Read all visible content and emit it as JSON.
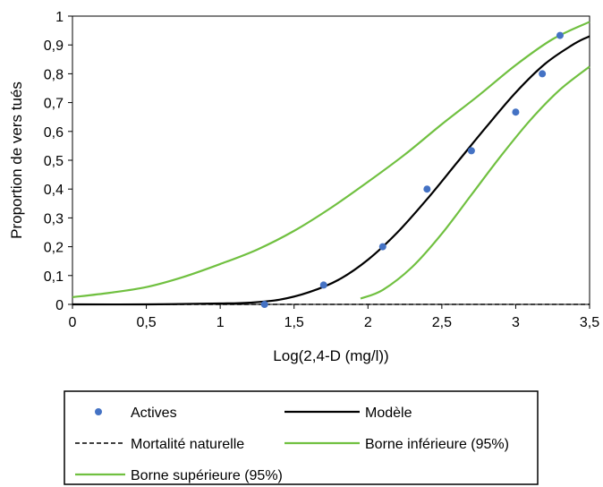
{
  "chart_data": {
    "type": "scatter",
    "title": "",
    "xlabel": "Log(2,4-D (mg/l))",
    "ylabel": "Proportion de vers tués",
    "xlim": [
      0,
      3.5
    ],
    "ylim": [
      0,
      1
    ],
    "x_ticks": [
      "0",
      "0,5",
      "1",
      "1,5",
      "2",
      "2,5",
      "3",
      "3,5"
    ],
    "y_ticks": [
      "0",
      "0,1",
      "0,2",
      "0,3",
      "0,4",
      "0,5",
      "0,6",
      "0,7",
      "0,8",
      "0,9",
      "1"
    ],
    "grid": false,
    "legend_position": "bottom",
    "series": [
      {
        "name": "Actives",
        "kind": "points",
        "color": "#4472C4",
        "points": [
          {
            "x": 1.3,
            "y": 0.0
          },
          {
            "x": 1.7,
            "y": 0.067
          },
          {
            "x": 2.1,
            "y": 0.2
          },
          {
            "x": 2.4,
            "y": 0.4
          },
          {
            "x": 2.7,
            "y": 0.533
          },
          {
            "x": 3.0,
            "y": 0.667
          },
          {
            "x": 3.18,
            "y": 0.8
          },
          {
            "x": 3.3,
            "y": 0.933
          }
        ]
      },
      {
        "name": "Modèle",
        "kind": "line",
        "color": "#000000",
        "points": [
          {
            "x": 0.0,
            "y": 0.0
          },
          {
            "x": 0.5,
            "y": 0.0
          },
          {
            "x": 1.0,
            "y": 0.003
          },
          {
            "x": 1.2,
            "y": 0.006
          },
          {
            "x": 1.4,
            "y": 0.016
          },
          {
            "x": 1.6,
            "y": 0.042
          },
          {
            "x": 1.8,
            "y": 0.085
          },
          {
            "x": 2.0,
            "y": 0.155
          },
          {
            "x": 2.2,
            "y": 0.25
          },
          {
            "x": 2.4,
            "y": 0.365
          },
          {
            "x": 2.6,
            "y": 0.49
          },
          {
            "x": 2.8,
            "y": 0.615
          },
          {
            "x": 3.0,
            "y": 0.735
          },
          {
            "x": 3.2,
            "y": 0.835
          },
          {
            "x": 3.4,
            "y": 0.905
          },
          {
            "x": 3.5,
            "y": 0.93
          }
        ]
      },
      {
        "name": "Mortalité naturelle",
        "kind": "line",
        "dashed": true,
        "color": "#000000",
        "points": [
          {
            "x": 0.0,
            "y": 0.0
          },
          {
            "x": 3.5,
            "y": 0.0
          }
        ]
      },
      {
        "name": "Borne inférieure (95%)",
        "kind": "line",
        "color": "#70C040",
        "points": [
          {
            "x": 1.95,
            "y": 0.02
          },
          {
            "x": 2.1,
            "y": 0.05
          },
          {
            "x": 2.3,
            "y": 0.13
          },
          {
            "x": 2.5,
            "y": 0.245
          },
          {
            "x": 2.7,
            "y": 0.38
          },
          {
            "x": 2.9,
            "y": 0.515
          },
          {
            "x": 3.1,
            "y": 0.64
          },
          {
            "x": 3.3,
            "y": 0.745
          },
          {
            "x": 3.5,
            "y": 0.825
          }
        ]
      },
      {
        "name": "Borne supérieure (95%)",
        "kind": "line",
        "color": "#70C040",
        "points": [
          {
            "x": 0.0,
            "y": 0.025
          },
          {
            "x": 0.25,
            "y": 0.04
          },
          {
            "x": 0.5,
            "y": 0.06
          },
          {
            "x": 0.75,
            "y": 0.095
          },
          {
            "x": 1.0,
            "y": 0.14
          },
          {
            "x": 1.25,
            "y": 0.19
          },
          {
            "x": 1.5,
            "y": 0.255
          },
          {
            "x": 1.75,
            "y": 0.335
          },
          {
            "x": 2.0,
            "y": 0.425
          },
          {
            "x": 2.25,
            "y": 0.52
          },
          {
            "x": 2.5,
            "y": 0.625
          },
          {
            "x": 2.75,
            "y": 0.725
          },
          {
            "x": 3.0,
            "y": 0.83
          },
          {
            "x": 3.25,
            "y": 0.92
          },
          {
            "x": 3.5,
            "y": 0.98
          }
        ]
      }
    ]
  }
}
